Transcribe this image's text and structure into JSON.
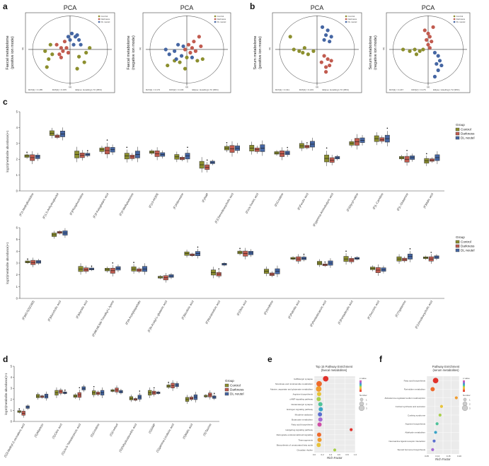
{
  "panels": {
    "a": {
      "label": "a"
    },
    "b": {
      "label": "b"
    },
    "c": {
      "label": "c"
    },
    "d": {
      "label": "d"
    },
    "e": {
      "label": "e"
    },
    "f": {
      "label": "f"
    }
  },
  "pca_plots": [
    {
      "title": "PCA",
      "side_label": "Faecal metabolome\n(positive ion mode)",
      "side_lines": [
        "Faecal metabolome",
        "(positive ion mode)"
      ],
      "legend": [
        "Control",
        "Darkness",
        "DL neutel"
      ],
      "footer": [
        "R2X[1] = 0.185",
        "R2X[2] = 0.155",
        "Ellipse: Hotelling's T2 (95%)"
      ]
    },
    {
      "title": "PCA",
      "side_lines": [
        "Faecal metabolome",
        "(negative ion mode)"
      ],
      "legend": [
        "Control",
        "Darkness",
        "DL neutel"
      ],
      "footer": [
        "R2X[1] = 0.173",
        "R2X[2] = 0.133",
        "Ellipse: Hotelling's T2 (95%)"
      ]
    },
    {
      "title": "PCA",
      "side_lines": [
        "Serum metabolome",
        "(positive ion mode)"
      ],
      "legend": [
        "Control",
        "Darkness",
        "DL neutel"
      ],
      "footer": [
        "R2X[1] = 0.311",
        "R2X[2] = 0.219",
        "Ellipse: Hotelling's T2 (95%)"
      ]
    },
    {
      "title": "PCA",
      "side_lines": [
        "Serum metabolome",
        "(negative ion mode)"
      ],
      "legend": [
        "Control",
        "Darkness",
        "DL neutel"
      ],
      "footer": [
        "R2X[1] = 0.247",
        "R2X[2] = 0.176",
        "Ellipse: Hotelling's T2 (95%)"
      ]
    }
  ],
  "colors": {
    "control": "#8c8f2e",
    "darkness": "#c15b4f",
    "dl": "#4566a3"
  },
  "box_y_label": "log10(metabolite abundance)+1",
  "group_legend": {
    "title": "Group",
    "items": [
      "Control",
      "Darkness",
      "DL neutel"
    ]
  },
  "chart_data": [
    {
      "type": "box",
      "ylabel": "log10(metabolite abundance)+1",
      "ylim": [
        0,
        5
      ],
      "ticks": [
        "0",
        "1",
        "2",
        "3",
        "4",
        "5"
      ],
      "categories": [
        "(F)1-Methylhistidine",
        "(F)1,5-Anhydroglucitol",
        "(F)Phosphocholine",
        "(F)2-Ketoglutaric acid",
        "(F)3-Methyladenine",
        "(F)13-HODE",
        "(F)Adenosine",
        "(F)AMP",
        "(F)Chenodeoxycholic acid",
        "(F)cis-Sorbic acid",
        "(F)Creatine",
        "(F)Ferulic acid",
        "(F)gamma-Aminobutyric acid",
        "(F)Glycyl-valine",
        "(F)L-Carnitine",
        "(F)L-Glutamine",
        "(F)Malic acid"
      ],
      "medians": [
        [
          2.2,
          2.1,
          2.15
        ],
        [
          3.65,
          3.45,
          3.6
        ],
        [
          2.3,
          2.25,
          2.3
        ],
        [
          2.6,
          2.55,
          2.6
        ],
        [
          2.2,
          2.15,
          2.3
        ],
        [
          2.45,
          2.35,
          2.3
        ],
        [
          2.15,
          2.05,
          2.2
        ],
        [
          1.65,
          1.5,
          1.8
        ],
        [
          2.7,
          2.65,
          2.7
        ],
        [
          2.7,
          2.6,
          2.7
        ],
        [
          2.4,
          2.35,
          2.4
        ],
        [
          2.85,
          2.8,
          2.95
        ],
        [
          2.05,
          1.95,
          2.1
        ],
        [
          3.0,
          3.1,
          3.2
        ],
        [
          3.3,
          3.25,
          3.3
        ],
        [
          2.1,
          2.0,
          2.1
        ],
        [
          1.9,
          1.95,
          2.1
        ]
      ]
    },
    {
      "type": "box",
      "ylabel": "log10(metabolite abundance)+1",
      "ylim": [
        0,
        6
      ],
      "ticks": [
        "0",
        "1",
        "2",
        "3",
        "4",
        "5",
        "6"
      ],
      "categories": [
        "(F)M3-5(3)G3(0)",
        "(F)Muricholic acid",
        "(F)Myristic acid",
        "(F)N6,N6,N6-Trimethyl-L-lysine",
        "(F)N-Acetylaspartate",
        "(F)N-Acetyl-L-glutamic acid",
        "(F)Nicotinic acid",
        "(F)Nonanedioic acid",
        "(F)Oleic acid",
        "(F)Ornithine",
        "(F)Palmitic acid",
        "(F)Pentadecanoic acid",
        "(F)Pentadecylic acid",
        "(F)Succinic acid",
        "(F)Tryptamine",
        "(F)Ursodeoxycholic acid"
      ],
      "medians": [
        [
          3.1,
          3.05,
          3.1
        ],
        [
          5.4,
          5.6,
          5.55
        ],
        [
          2.5,
          2.45,
          2.5
        ],
        [
          2.45,
          2.35,
          2.55
        ],
        [
          2.5,
          2.4,
          2.5
        ],
        [
          1.8,
          1.75,
          1.9
        ],
        [
          3.8,
          3.7,
          3.8
        ],
        [
          2.2,
          2.05,
          2.9
        ],
        [
          3.9,
          3.8,
          3.85
        ],
        [
          2.3,
          2.05,
          2.3
        ],
        [
          3.4,
          3.35,
          3.4
        ],
        [
          3.0,
          2.85,
          3.0
        ],
        [
          3.35,
          3.25,
          3.4
        ],
        [
          2.55,
          2.4,
          2.45
        ],
        [
          3.35,
          3.3,
          3.55
        ],
        [
          3.45,
          3.35,
          3.5
        ]
      ]
    },
    {
      "type": "box",
      "ylabel": "log10(metabolite abundance)+1",
      "ylim": [
        0,
        5
      ],
      "ticks": [
        "0",
        "1",
        "2",
        "3",
        "4",
        "5"
      ],
      "categories": [
        "(S)3-Methyl-2-oxovaleric acid",
        "(S)Allantoin",
        "(S)Citric acid",
        "(S)cis-5-Tetradecenoic acid",
        "(S)Creatine",
        "(S)Cortisol",
        "(S)Dehydroascorbic acid",
        "(S)GMP",
        "(S)gamma-Linolenic acid",
        "(S)Malic acid",
        "(S)Taurine"
      ],
      "medians": [
        [
          0.9,
          0.75,
          1.3
        ],
        [
          2.3,
          2.25,
          2.3
        ],
        [
          2.6,
          2.7,
          2.6
        ],
        [
          2.3,
          2.4,
          3.0
        ],
        [
          2.6,
          2.55,
          2.6
        ],
        [
          2.8,
          2.85,
          2.7
        ],
        [
          2.1,
          2.0,
          2.2
        ],
        [
          2.6,
          2.6,
          2.6
        ],
        [
          3.2,
          3.25,
          3.3
        ],
        [
          2.0,
          2.1,
          2.2
        ],
        [
          2.3,
          2.4,
          2.2
        ]
      ]
    },
    {
      "type": "scatter",
      "title": "Top 15 Pathway Enrichment\n(faecal metabolites)",
      "title_lines": [
        "Top 15 Pathway Enrichment",
        "(faecal metabolites)"
      ],
      "xlabel": "Rich Factor",
      "pathways": [
        "GABAergic synapse",
        "Nicotinate and nicotinamide metabolism",
        "Alanine, aspartate and glutamate metabolism",
        "Arginine biosynthesis",
        "cAMP signaling pathway",
        "Glutamatergic synapse",
        "Estrogen signaling pathway",
        "Morphine addiction",
        "Butanoate metabolism",
        "Fatty acid biosynthesis",
        "Hedgehog signaling pathway",
        "Retrograde endocannabinoid signaling",
        "Thermogenesis",
        "Biosynthesis of unsaturated fatty acids",
        "Circadian rhythm"
      ],
      "rich_factor": [
        0.28,
        0.12,
        0.11,
        0.12,
        0.11,
        0.15,
        0.16,
        0.14,
        0.15,
        0.13,
        0.9,
        0.12,
        0.13,
        0.11,
        0.5
      ],
      "number": [
        3,
        3,
        3,
        2,
        2,
        2,
        2,
        2,
        2,
        2,
        1,
        2,
        2,
        2,
        1
      ],
      "xticks": [
        "0.0",
        "0.2",
        "0.4",
        "0.6",
        "0.8",
        "1.0"
      ],
      "legend_p": "p value",
      "legend_n": "Number",
      "number_ticks": [
        "1",
        "2",
        "3"
      ]
    },
    {
      "type": "scatter",
      "title": "Pathway Enrichment\n(serum metabolites)",
      "title_lines": [
        "Pathway Enrichment",
        "(serum metabolites)"
      ],
      "xlabel": "Rich Factor",
      "pathways": [
        "Fatty acid biosynthesis",
        "Pyrimidine metabolism",
        "Aldosterone-regulated sodium reabsorption",
        "Cortisol synthesis and secretion",
        "Cushing syndrome",
        "Arginine biosynthesis",
        "Aldehyde metabolism",
        "Neuroactive ligand-receptor interaction",
        "Steroid hormone biosynthesis"
      ],
      "rich_factor": [
        0.06,
        0.04,
        0.2,
        0.1,
        0.09,
        0.07,
        0.06,
        0.05,
        0.04
      ],
      "number": [
        3,
        2,
        1,
        1,
        1,
        1,
        1,
        1,
        1
      ],
      "xticks": [
        "0.05",
        "0.10",
        "0.15",
        "0.20"
      ],
      "legend_p": "p value",
      "legend_n": "Number",
      "number_ticks": [
        "1",
        "2",
        "3"
      ]
    }
  ]
}
